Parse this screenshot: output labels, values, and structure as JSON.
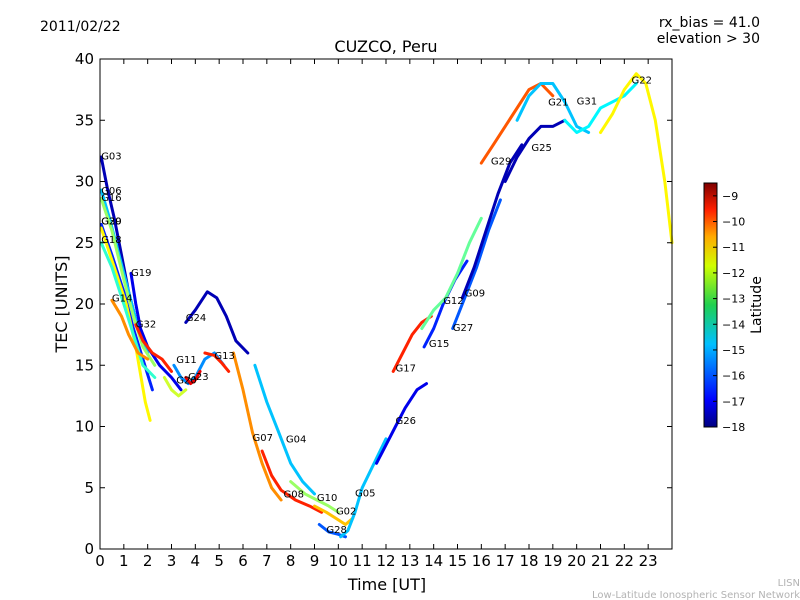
{
  "header": {
    "date": "2011/02/22",
    "rx_bias": "rx_bias = 41.0",
    "elevation": "elevation > 30"
  },
  "footer": {
    "line1": "LISN",
    "line2": "Low-Latitude Ionospheric Sensor Network"
  },
  "chart_data": {
    "type": "scatter",
    "title": "CUZCO, Peru",
    "xlabel": "Time [UT]",
    "ylabel": "TEC [UNITS]",
    "xlim": [
      0,
      24
    ],
    "ylim": [
      0,
      40
    ],
    "xticks": [
      0,
      1,
      2,
      3,
      4,
      5,
      6,
      7,
      8,
      9,
      10,
      11,
      12,
      13,
      14,
      15,
      16,
      17,
      18,
      19,
      20,
      21,
      22,
      23
    ],
    "yticks": [
      0,
      5,
      10,
      15,
      20,
      25,
      30,
      35,
      40
    ],
    "grid": false,
    "colorbar": {
      "label": "Latitude",
      "range": [
        -18,
        -8.5
      ],
      "ticks": [
        -18,
        -17,
        -16,
        -15,
        -14,
        -13,
        -12,
        -11,
        -10,
        -9
      ],
      "colormap": "jet"
    },
    "series": [
      {
        "name": "G03",
        "label_at": [
          0.05,
          31.8
        ],
        "points": [
          [
            0.05,
            32
          ],
          [
            0.3,
            29.5
          ],
          [
            0.6,
            27
          ],
          [
            0.9,
            24
          ],
          [
            1.2,
            21
          ],
          [
            1.6,
            18
          ],
          [
            2.0,
            16
          ]
        ],
        "lat": -17.5
      },
      {
        "name": "G06",
        "label_at": [
          0.05,
          29.0
        ],
        "points": [
          [
            0.05,
            29.3
          ],
          [
            0.4,
            27
          ],
          [
            0.8,
            24
          ],
          [
            1.2,
            21
          ],
          [
            1.6,
            18
          ],
          [
            2.0,
            16
          ]
        ],
        "lat": -15
      },
      {
        "name": "G16",
        "label_at": [
          0.05,
          28.4
        ],
        "points": [
          [
            0.05,
            28.6
          ],
          [
            0.5,
            26
          ],
          [
            1.0,
            22
          ],
          [
            1.4,
            19
          ],
          [
            1.8,
            16.5
          ],
          [
            2.3,
            15
          ]
        ],
        "lat": -13
      },
      {
        "name": "G30",
        "label_at": [
          0.05,
          26.5
        ],
        "points": [
          [
            0.05,
            26.5
          ],
          [
            0.5,
            24
          ],
          [
            1.0,
            21
          ],
          [
            1.4,
            18
          ],
          [
            1.8,
            15.5
          ],
          [
            2.2,
            13
          ]
        ],
        "lat": -16.5
      },
      {
        "name": "G29",
        "label_at": [
          0.05,
          26.5
        ],
        "points": [
          [
            0.05,
            26.2
          ],
          [
            0.6,
            23
          ],
          [
            1.1,
            20
          ],
          [
            1.5,
            16.5
          ],
          [
            1.9,
            12
          ],
          [
            2.1,
            10.5
          ]
        ],
        "lat": -12
      },
      {
        "name": "G18",
        "label_at": [
          0.05,
          25.0
        ],
        "points": [
          [
            0.05,
            25
          ],
          [
            0.5,
            23
          ],
          [
            1.0,
            20
          ],
          [
            1.4,
            17.5
          ],
          [
            1.8,
            15
          ],
          [
            2.3,
            14
          ]
        ],
        "lat": -14
      },
      {
        "name": "G19",
        "label_at": [
          1.3,
          22.3
        ],
        "points": [
          [
            1.3,
            22.5
          ],
          [
            1.5,
            20
          ],
          [
            1.7,
            18
          ],
          [
            2.0,
            16.5
          ],
          [
            2.5,
            15
          ],
          [
            3.0,
            14
          ],
          [
            3.4,
            13
          ]
        ],
        "lat": -17
      },
      {
        "name": "G14",
        "label_at": [
          0.5,
          20.2
        ],
        "points": [
          [
            0.5,
            20.3
          ],
          [
            0.9,
            19
          ],
          [
            1.2,
            17.5
          ],
          [
            1.6,
            16
          ],
          [
            2.0,
            15.5
          ]
        ],
        "lat": -11
      },
      {
        "name": "G32",
        "label_at": [
          1.5,
          18.1
        ],
        "points": [
          [
            1.5,
            18.3
          ],
          [
            1.8,
            17
          ],
          [
            2.2,
            16
          ],
          [
            2.6,
            15.5
          ],
          [
            3.0,
            14.5
          ]
        ],
        "lat": -10
      },
      {
        "name": "G24",
        "label_at": [
          3.6,
          18.6
        ],
        "points": [
          [
            3.6,
            18.5
          ],
          [
            4.0,
            19.5
          ],
          [
            4.5,
            21
          ],
          [
            4.9,
            20.5
          ],
          [
            5.3,
            19
          ],
          [
            5.7,
            17
          ],
          [
            6.2,
            16
          ]
        ],
        "lat": -17.5
      },
      {
        "name": "G11",
        "label_at": [
          3.2,
          15.2
        ],
        "points": [
          [
            3.1,
            15
          ],
          [
            3.4,
            14
          ],
          [
            3.7,
            13.5
          ],
          [
            4.0,
            14
          ],
          [
            4.4,
            15.5
          ],
          [
            4.8,
            16
          ],
          [
            5.2,
            15
          ]
        ],
        "lat": -15.5
      },
      {
        "name": "G13",
        "label_at": [
          4.8,
          15.5
        ],
        "points": [
          [
            4.4,
            16
          ],
          [
            4.8,
            15.8
          ],
          [
            5.1,
            15.2
          ],
          [
            5.4,
            14.5
          ]
        ],
        "lat": -10
      },
      {
        "name": "G23",
        "label_at": [
          3.7,
          13.8
        ],
        "points": [
          [
            3.6,
            14
          ],
          [
            3.8,
            13.5
          ],
          [
            4.0,
            13.8
          ],
          [
            4.2,
            14.5
          ]
        ],
        "lat": -9.5
      },
      {
        "name": "G20",
        "label_at": [
          3.2,
          13.5
        ],
        "points": [
          [
            2.7,
            14
          ],
          [
            3.0,
            13
          ],
          [
            3.3,
            12.5
          ],
          [
            3.6,
            13
          ]
        ],
        "lat": -12.5
      },
      {
        "name": "G07",
        "label_at": [
          6.4,
          8.8
        ],
        "points": [
          [
            5.6,
            16
          ],
          [
            6.0,
            13
          ],
          [
            6.4,
            9.5
          ],
          [
            6.8,
            7
          ],
          [
            7.2,
            5
          ],
          [
            7.6,
            4
          ]
        ],
        "lat": -11
      },
      {
        "name": "G04",
        "label_at": [
          7.8,
          8.7
        ],
        "points": [
          [
            6.5,
            15
          ],
          [
            7.0,
            12
          ],
          [
            7.5,
            9.5
          ],
          [
            8.0,
            7
          ],
          [
            8.5,
            5.5
          ],
          [
            9.0,
            4.5
          ]
        ],
        "lat": -15
      },
      {
        "name": "G08",
        "label_at": [
          7.7,
          4.2
        ],
        "points": [
          [
            6.8,
            8
          ],
          [
            7.2,
            6
          ],
          [
            7.6,
            4.8
          ],
          [
            8.2,
            4
          ],
          [
            8.8,
            3.5
          ],
          [
            9.3,
            3
          ]
        ],
        "lat": -10
      },
      {
        "name": "G10",
        "label_at": [
          9.1,
          3.9
        ],
        "points": [
          [
            8.0,
            5.5
          ],
          [
            8.6,
            4.5
          ],
          [
            9.1,
            4
          ],
          [
            9.6,
            3.5
          ],
          [
            10.0,
            3
          ]
        ],
        "lat": -13
      },
      {
        "name": "G02",
        "label_at": [
          9.9,
          2.8
        ],
        "points": [
          [
            9.0,
            3.5
          ],
          [
            9.5,
            3
          ],
          [
            9.9,
            2.5
          ],
          [
            10.3,
            2
          ],
          [
            10.6,
            2.5
          ]
        ],
        "lat": -11.5
      },
      {
        "name": "G28",
        "label_at": [
          9.5,
          1.3
        ],
        "points": [
          [
            9.2,
            2
          ],
          [
            9.6,
            1.4
          ],
          [
            10.0,
            1.2
          ],
          [
            10.3,
            1.0
          ]
        ],
        "lat": -16
      },
      {
        "name": "G05",
        "label_at": [
          10.7,
          4.3
        ],
        "points": [
          [
            10.1,
            1
          ],
          [
            10.4,
            1.5
          ],
          [
            10.7,
            3
          ],
          [
            11.0,
            5
          ],
          [
            11.5,
            7
          ],
          [
            12.0,
            9
          ]
        ],
        "lat": -15
      },
      {
        "name": "G26",
        "label_at": [
          12.4,
          10.2
        ],
        "points": [
          [
            11.6,
            7
          ],
          [
            12.0,
            8.5
          ],
          [
            12.4,
            10
          ],
          [
            12.8,
            11.5
          ],
          [
            13.3,
            13
          ],
          [
            13.7,
            13.5
          ]
        ],
        "lat": -17
      },
      {
        "name": "G17",
        "label_at": [
          12.4,
          14.5
        ],
        "points": [
          [
            12.3,
            14.5
          ],
          [
            12.7,
            16
          ],
          [
            13.1,
            17.5
          ],
          [
            13.5,
            18.5
          ],
          [
            13.9,
            19
          ]
        ],
        "lat": -10
      },
      {
        "name": "G15",
        "label_at": [
          13.8,
          16.5
        ],
        "points": [
          [
            13.6,
            16.5
          ],
          [
            14.0,
            18
          ],
          [
            14.4,
            20
          ],
          [
            14.9,
            22
          ],
          [
            15.4,
            23.5
          ]
        ],
        "lat": -16.5
      },
      {
        "name": "G12",
        "label_at": [
          14.4,
          20.0
        ],
        "points": [
          [
            13.5,
            18
          ],
          [
            14.0,
            19.5
          ],
          [
            14.5,
            20.5
          ],
          [
            15.0,
            22.5
          ],
          [
            15.5,
            25
          ],
          [
            16.0,
            27
          ]
        ],
        "lat": -13.5
      },
      {
        "name": "G27",
        "label_at": [
          14.8,
          17.8
        ],
        "points": [
          [
            14.8,
            18
          ],
          [
            15.3,
            20.5
          ],
          [
            15.8,
            23
          ],
          [
            16.3,
            26
          ],
          [
            16.8,
            28.5
          ]
        ],
        "lat": -16
      },
      {
        "name": "G09",
        "label_at": [
          15.3,
          20.6
        ],
        "points": [
          [
            15.2,
            20.5
          ],
          [
            15.7,
            23
          ],
          [
            16.2,
            26
          ],
          [
            16.7,
            29
          ],
          [
            17.2,
            31.5
          ],
          [
            17.7,
            33
          ]
        ],
        "lat": -17.5
      },
      {
        "name": "G29",
        "label_at": [
          16.4,
          31.4
        ],
        "points": [
          [
            16.0,
            31.5
          ],
          [
            16.5,
            33
          ],
          [
            17.0,
            34.5
          ],
          [
            17.5,
            36
          ],
          [
            18.0,
            37.5
          ],
          [
            18.5,
            38
          ],
          [
            19.0,
            37
          ]
        ],
        "lat": -10.5
      },
      {
        "name": "G25",
        "label_at": [
          18.1,
          32.5
        ],
        "points": [
          [
            17.0,
            30
          ],
          [
            17.5,
            32
          ],
          [
            18.0,
            33.5
          ],
          [
            18.5,
            34.5
          ],
          [
            19.0,
            34.5
          ],
          [
            19.5,
            35
          ]
        ],
        "lat": -17.5
      },
      {
        "name": "G21",
        "label_at": [
          18.8,
          36.2
        ],
        "points": [
          [
            17.5,
            35
          ],
          [
            18.0,
            37
          ],
          [
            18.5,
            38
          ],
          [
            19.0,
            38
          ],
          [
            19.5,
            36.5
          ],
          [
            20.0,
            34.5
          ],
          [
            20.5,
            34
          ]
        ],
        "lat": -15
      },
      {
        "name": "G31",
        "label_at": [
          20.0,
          36.3
        ],
        "points": [
          [
            19.5,
            35
          ],
          [
            20.0,
            34
          ],
          [
            20.5,
            34.5
          ],
          [
            21.0,
            36
          ],
          [
            21.5,
            36.5
          ],
          [
            22.0,
            37
          ],
          [
            22.5,
            38
          ]
        ],
        "lat": -14.5
      },
      {
        "name": "G22",
        "label_at": [
          22.3,
          38.0
        ],
        "points": [
          [
            21.0,
            34
          ],
          [
            21.5,
            35.5
          ],
          [
            22.0,
            37.5
          ],
          [
            22.5,
            38.8
          ],
          [
            22.9,
            38
          ],
          [
            23.3,
            35
          ],
          [
            23.7,
            30
          ],
          [
            24.0,
            25
          ]
        ],
        "lat": -12
      }
    ]
  }
}
